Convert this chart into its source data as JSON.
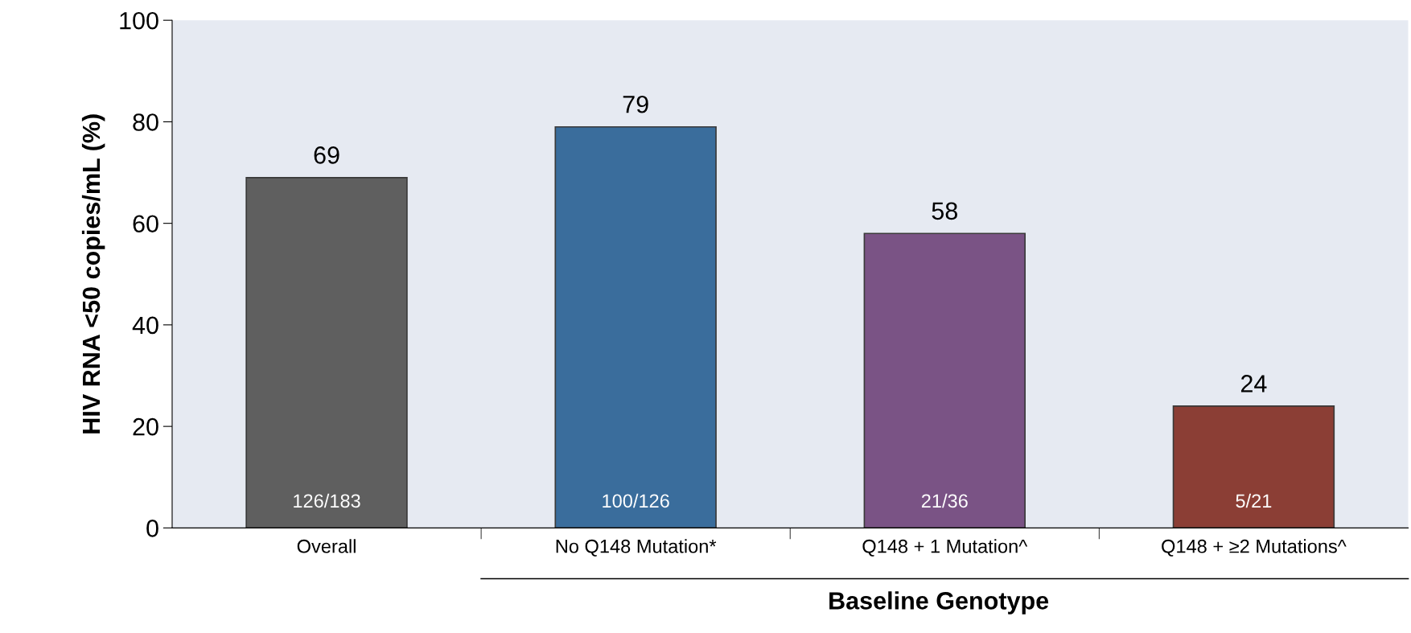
{
  "chart_data": {
    "type": "bar",
    "ylabel": "HIV RNA <50 copies/mL (%)",
    "xlabel": "Baseline Genotype",
    "categories": [
      "Overall",
      "No Q148 Mutation*",
      "Q148 + 1 Mutation^",
      "Q148 + ≥2 Mutations^"
    ],
    "values": [
      69,
      79,
      58,
      24
    ],
    "colors": [
      "#5f5f5f",
      "#3a6d9c",
      "#7a5385",
      "#8b3e35"
    ],
    "data_labels": true,
    "annotations": [
      "126/183",
      "100/126",
      "21/36",
      "5/21"
    ],
    "ylim": [
      0,
      100
    ],
    "yticks": [
      0,
      20,
      40,
      60,
      80,
      100
    ],
    "grid": false,
    "legend": false
  }
}
